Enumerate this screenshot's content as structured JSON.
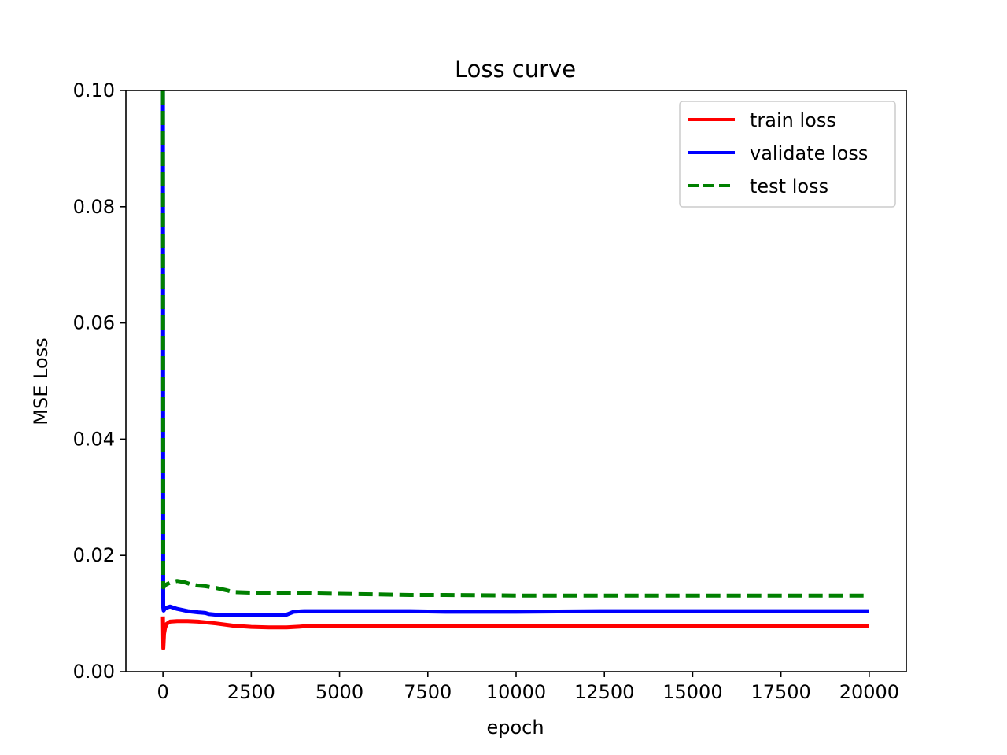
{
  "chart_data": {
    "type": "line",
    "title": "Loss curve",
    "xlabel": "epoch",
    "ylabel": "MSE Loss",
    "xlim": [
      -1050,
      21050
    ],
    "ylim": [
      0,
      0.1
    ],
    "xticks": [
      0,
      2500,
      5000,
      7500,
      10000,
      12500,
      15000,
      17500,
      20000
    ],
    "yticks": [
      0.0,
      0.02,
      0.04,
      0.06,
      0.08,
      0.1
    ],
    "xtick_labels": [
      "0",
      "2500",
      "5000",
      "7500",
      "10000",
      "12500",
      "15000",
      "17500",
      "20000"
    ],
    "ytick_labels": [
      "0.00",
      "0.02",
      "0.04",
      "0.06",
      "0.08",
      "0.10"
    ],
    "grid": false,
    "legend_position": "top-right",
    "series": [
      {
        "name": "train loss",
        "color": "#ff0000",
        "dash": "solid",
        "x": [
          0,
          10,
          30,
          60,
          100,
          200,
          400,
          700,
          1000,
          1500,
          2000,
          2500,
          3000,
          3500,
          4000,
          5000,
          6000,
          8000,
          10000,
          12500,
          15000,
          17500,
          20000
        ],
        "y": [
          0.0095,
          0.004,
          0.0065,
          0.0075,
          0.0082,
          0.0086,
          0.0087,
          0.0087,
          0.0086,
          0.0083,
          0.0079,
          0.0077,
          0.0076,
          0.0076,
          0.0078,
          0.0078,
          0.0079,
          0.0079,
          0.0079,
          0.0079,
          0.0079,
          0.0079,
          0.0079
        ]
      },
      {
        "name": "validate loss",
        "color": "#0000ff",
        "dash": "solid",
        "x": [
          0,
          8,
          20,
          50,
          100,
          200,
          400,
          700,
          1000,
          1200,
          1300,
          1500,
          2000,
          2500,
          3000,
          3500,
          3700,
          4000,
          5000,
          6000,
          7000,
          8000,
          10000,
          12500,
          15000,
          17500,
          20000
        ],
        "y": [
          0.1,
          0.011,
          0.0105,
          0.0108,
          0.011,
          0.0112,
          0.0108,
          0.0104,
          0.0102,
          0.0101,
          0.0099,
          0.0098,
          0.0097,
          0.0097,
          0.0097,
          0.0098,
          0.0103,
          0.0104,
          0.0104,
          0.0104,
          0.0104,
          0.0103,
          0.0103,
          0.0104,
          0.0104,
          0.0104,
          0.0104
        ]
      },
      {
        "name": "test loss",
        "color": "#008000",
        "dash": "dashed",
        "x": [
          0,
          8,
          20,
          50,
          100,
          200,
          400,
          600,
          800,
          1000,
          1200,
          1500,
          1800,
          2000,
          2500,
          3000,
          3500,
          4000,
          5000,
          6000,
          7000,
          8000,
          10000,
          12500,
          15000,
          17500,
          20000
        ],
        "y": [
          0.1,
          0.0145,
          0.0145,
          0.0148,
          0.015,
          0.0153,
          0.0156,
          0.0154,
          0.015,
          0.0148,
          0.0147,
          0.0144,
          0.014,
          0.0137,
          0.0136,
          0.0135,
          0.0135,
          0.0135,
          0.0134,
          0.0133,
          0.0132,
          0.0132,
          0.0131,
          0.0131,
          0.0131,
          0.0131,
          0.0131
        ]
      }
    ]
  }
}
